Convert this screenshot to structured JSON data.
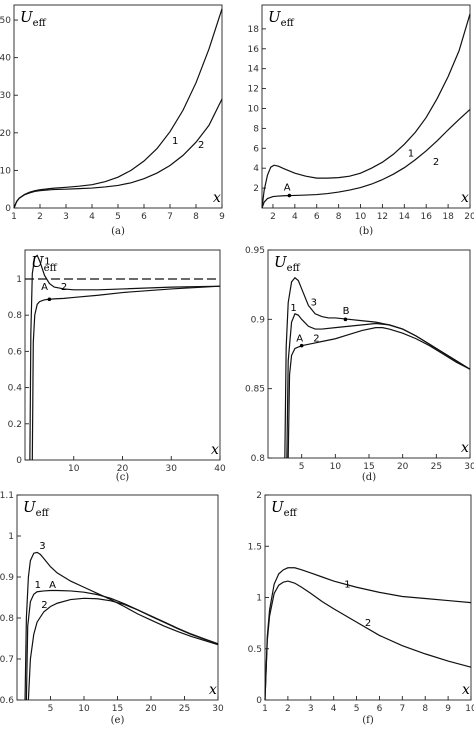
{
  "ylabel_main": "U",
  "ylabel_sub": "eff",
  "xlabel": "x",
  "chart_data": [
    {
      "id": "a",
      "panel_label": "(a)",
      "type": "line",
      "xlim": [
        1,
        9
      ],
      "ylim": [
        0,
        54
      ],
      "xticks": [
        1,
        2,
        3,
        4,
        5,
        6,
        7,
        8,
        9
      ],
      "yticks": [
        0,
        10,
        20,
        30,
        40,
        50
      ],
      "series": [
        {
          "name": "1",
          "x": [
            1,
            1.1,
            1.2,
            1.4,
            1.6,
            1.8,
            2,
            2.5,
            3,
            3.5,
            4,
            4.5,
            5,
            5.5,
            6,
            6.5,
            7,
            7.5,
            8,
            8.5,
            9
          ],
          "y": [
            0,
            1.7,
            2.6,
            3.6,
            4.2,
            4.6,
            4.85,
            5.25,
            5.5,
            5.8,
            6.2,
            7.0,
            8.2,
            10.0,
            12.5,
            15.8,
            20.3,
            26.0,
            33.3,
            42.3,
            53.0
          ]
        },
        {
          "name": "2",
          "x": [
            1,
            1.1,
            1.2,
            1.4,
            1.6,
            1.8,
            2,
            2.5,
            3,
            3.5,
            4,
            4.5,
            5,
            5.5,
            6,
            6.5,
            7,
            7.5,
            8,
            8.5,
            9
          ],
          "y": [
            0,
            1.7,
            2.6,
            3.5,
            4.0,
            4.4,
            4.6,
            4.9,
            5.0,
            5.15,
            5.3,
            5.6,
            6.0,
            6.7,
            7.8,
            9.3,
            11.3,
            14.0,
            17.5,
            22.0,
            29.0
          ]
        }
      ],
      "annotations": [
        {
          "text": "1",
          "x": 7.2,
          "y": 17.0
        },
        {
          "text": "2",
          "x": 8.2,
          "y": 16.0
        }
      ],
      "points": []
    },
    {
      "id": "b",
      "panel_label": "(b)",
      "type": "line",
      "xlim": [
        1,
        20
      ],
      "ylim": [
        0,
        20.4
      ],
      "xticks": [
        2,
        4,
        6,
        8,
        10,
        12,
        14,
        16,
        18,
        20
      ],
      "yticks": [
        2,
        4,
        6,
        8,
        10,
        12,
        14,
        16,
        18
      ],
      "series": [
        {
          "name": "1",
          "x": [
            1,
            1.2,
            1.5,
            1.8,
            2.1,
            2.5,
            3,
            4,
            5,
            6,
            7,
            8,
            9,
            10,
            11,
            12,
            13,
            14,
            15,
            16,
            17,
            18,
            19,
            20
          ],
          "y": [
            0,
            1.8,
            3.3,
            4.1,
            4.3,
            4.2,
            3.95,
            3.5,
            3.2,
            3.0,
            3.0,
            3.05,
            3.2,
            3.5,
            4.0,
            4.6,
            5.4,
            6.4,
            7.6,
            9.1,
            11.0,
            13.2,
            15.8,
            19.5
          ]
        },
        {
          "name": "2",
          "x": [
            1,
            1.2,
            1.5,
            2,
            2.5,
            3,
            3.5,
            4,
            5,
            6,
            7,
            8,
            9,
            10,
            11,
            12,
            13,
            14,
            15,
            16,
            17,
            18,
            19,
            20
          ],
          "y": [
            0,
            0.6,
            0.95,
            1.15,
            1.2,
            1.23,
            1.25,
            1.26,
            1.3,
            1.35,
            1.45,
            1.6,
            1.8,
            2.05,
            2.4,
            2.85,
            3.4,
            4.05,
            4.85,
            5.75,
            6.75,
            7.85,
            8.9,
            9.9
          ]
        }
      ],
      "annotations": [
        {
          "text": "A",
          "x": 3.3,
          "y": 1.75
        },
        {
          "text": "1",
          "x": 14.6,
          "y": 5.2
        },
        {
          "text": "2",
          "x": 16.9,
          "y": 4.3
        }
      ],
      "points": [
        {
          "x": 3.5,
          "y": 1.25
        }
      ]
    },
    {
      "id": "c",
      "panel_label": "(c)",
      "type": "line",
      "xlim": [
        0,
        40
      ],
      "ylim": [
        0,
        1.16
      ],
      "xticks": [
        10,
        20,
        30,
        40
      ],
      "yticks": [
        0,
        0.2,
        0.4,
        0.6,
        0.8,
        1
      ],
      "dashed_y": 1.0,
      "series": [
        {
          "name": "1",
          "x": [
            1,
            1.2,
            1.5,
            2,
            2.5,
            3,
            3.5,
            4,
            5,
            6,
            8,
            10,
            15,
            20,
            30,
            40
          ],
          "y": [
            0,
            0.7,
            1.03,
            1.12,
            1.13,
            1.1,
            1.06,
            1.02,
            0.975,
            0.955,
            0.945,
            0.94,
            0.94,
            0.945,
            0.955,
            0.96
          ]
        },
        {
          "name": "2",
          "x": [
            1.5,
            1.7,
            2,
            2.5,
            3,
            4,
            5,
            6,
            8,
            10,
            15,
            20,
            30,
            40
          ],
          "y": [
            0,
            0.65,
            0.8,
            0.86,
            0.875,
            0.885,
            0.888,
            0.89,
            0.893,
            0.898,
            0.91,
            0.925,
            0.945,
            0.96
          ]
        }
      ],
      "annotations": [
        {
          "text": "1",
          "x": 4.6,
          "y": 1.08
        },
        {
          "text": "A",
          "x": 4.0,
          "y": 0.94
        },
        {
          "text": "2",
          "x": 8.0,
          "y": 0.94
        }
      ],
      "points": [
        {
          "x": 5.0,
          "y": 0.888
        }
      ]
    },
    {
      "id": "d",
      "panel_label": "(d)",
      "type": "line",
      "xlim": [
        0,
        30
      ],
      "ylim": [
        0.8,
        0.95
      ],
      "xticks": [
        5,
        10,
        15,
        20,
        25,
        30
      ],
      "yticks": [
        0.8,
        0.85,
        0.9,
        0.95
      ],
      "series": [
        {
          "name": "3",
          "x": [
            2.5,
            2.7,
            3,
            3.5,
            4,
            4.5,
            5,
            6,
            7,
            8,
            9,
            10,
            12,
            14,
            16,
            18,
            20,
            22,
            24,
            26,
            28,
            30
          ],
          "y": [
            0.8,
            0.88,
            0.912,
            0.927,
            0.93,
            0.928,
            0.922,
            0.91,
            0.904,
            0.902,
            0.901,
            0.901,
            0.9,
            0.899,
            0.898,
            0.896,
            0.893,
            0.888,
            0.882,
            0.876,
            0.87,
            0.864
          ]
        },
        {
          "name": "1",
          "x": [
            2.8,
            3,
            3.5,
            4,
            4.5,
            5,
            6,
            7,
            8,
            10,
            12,
            14,
            16,
            18,
            20,
            22,
            24,
            26,
            28,
            30
          ],
          "y": [
            0.8,
            0.87,
            0.898,
            0.904,
            0.903,
            0.9,
            0.895,
            0.893,
            0.893,
            0.894,
            0.895,
            0.896,
            0.897,
            0.896,
            0.893,
            0.888,
            0.882,
            0.876,
            0.87,
            0.864
          ]
        },
        {
          "name": "2",
          "x": [
            3,
            3.2,
            3.5,
            4,
            5,
            6,
            7,
            8,
            10,
            12,
            14,
            16,
            17,
            18,
            20,
            22,
            24,
            26,
            28,
            30
          ],
          "y": [
            0.8,
            0.86,
            0.874,
            0.879,
            0.881,
            0.882,
            0.883,
            0.884,
            0.886,
            0.889,
            0.892,
            0.894,
            0.894,
            0.893,
            0.89,
            0.886,
            0.881,
            0.875,
            0.869,
            0.864
          ]
        }
      ],
      "annotations": [
        {
          "text": "3",
          "x": 6.8,
          "y": 0.91
        },
        {
          "text": "1",
          "x": 3.8,
          "y": 0.906
        },
        {
          "text": "B",
          "x": 11.6,
          "y": 0.904
        },
        {
          "text": "A",
          "x": 4.7,
          "y": 0.884
        },
        {
          "text": "2",
          "x": 7.2,
          "y": 0.884
        }
      ],
      "points": [
        {
          "x": 11.5,
          "y": 0.9
        },
        {
          "x": 5.0,
          "y": 0.881
        }
      ]
    },
    {
      "id": "e",
      "panel_label": "(e)",
      "type": "line",
      "xlim": [
        0,
        30
      ],
      "ylim": [
        0.6,
        1.1
      ],
      "xticks": [
        5,
        10,
        15,
        20,
        25,
        30
      ],
      "yticks": [
        0.6,
        0.7,
        0.8,
        0.9,
        1,
        1.1
      ],
      "series": [
        {
          "name": "3",
          "x": [
            1.2,
            1.4,
            1.7,
            2,
            2.5,
            3,
            3.5,
            4,
            5,
            6,
            8,
            10,
            12,
            14,
            16,
            18,
            20,
            22,
            24,
            26,
            28,
            30
          ],
          "y": [
            0.6,
            0.8,
            0.9,
            0.94,
            0.958,
            0.96,
            0.955,
            0.945,
            0.925,
            0.91,
            0.89,
            0.875,
            0.86,
            0.845,
            0.828,
            0.81,
            0.795,
            0.78,
            0.767,
            0.755,
            0.745,
            0.735
          ]
        },
        {
          "name": "1",
          "x": [
            1.4,
            1.6,
            2,
            2.5,
            3,
            4,
            5,
            6,
            8,
            10,
            12,
            14,
            16,
            18,
            20,
            22,
            24,
            26,
            28,
            30
          ],
          "y": [
            0.6,
            0.78,
            0.84,
            0.858,
            0.864,
            0.866,
            0.867,
            0.867,
            0.866,
            0.863,
            0.857,
            0.848,
            0.835,
            0.82,
            0.804,
            0.789,
            0.774,
            0.76,
            0.748,
            0.737
          ]
        },
        {
          "name": "2",
          "x": [
            1.7,
            2,
            2.5,
            3,
            4,
            5,
            6,
            8,
            10,
            12,
            14,
            16,
            18,
            20,
            22,
            24,
            26,
            28,
            30
          ],
          "y": [
            0.6,
            0.7,
            0.76,
            0.79,
            0.815,
            0.828,
            0.836,
            0.845,
            0.848,
            0.847,
            0.842,
            0.833,
            0.82,
            0.805,
            0.79,
            0.775,
            0.761,
            0.749,
            0.737
          ]
        }
      ],
      "annotations": [
        {
          "text": "3",
          "x": 3.8,
          "y": 0.968
        },
        {
          "text": "1",
          "x": 3.1,
          "y": 0.873
        },
        {
          "text": "A",
          "x": 5.3,
          "y": 0.873
        },
        {
          "text": "2",
          "x": 4.1,
          "y": 0.825
        }
      ],
      "points": []
    },
    {
      "id": "f",
      "panel_label": "(f)",
      "type": "line",
      "xlim": [
        1,
        10
      ],
      "ylim": [
        0,
        2
      ],
      "xticks": [
        1,
        2,
        3,
        4,
        5,
        6,
        7,
        8,
        9,
        10
      ],
      "yticks": [
        0,
        0.5,
        1,
        1.5,
        2
      ],
      "series": [
        {
          "name": "1",
          "x": [
            1,
            1.1,
            1.2,
            1.4,
            1.6,
            1.8,
            2,
            2.3,
            2.6,
            3,
            3.5,
            4,
            5,
            6,
            7,
            8,
            9,
            10
          ],
          "y": [
            0,
            0.62,
            0.88,
            1.13,
            1.23,
            1.27,
            1.29,
            1.29,
            1.27,
            1.24,
            1.2,
            1.16,
            1.1,
            1.05,
            1.01,
            0.99,
            0.97,
            0.95
          ]
        },
        {
          "name": "2",
          "x": [
            1,
            1.1,
            1.2,
            1.4,
            1.6,
            1.8,
            2,
            2.3,
            2.6,
            3,
            3.5,
            4,
            5,
            6,
            7,
            8,
            9,
            10
          ],
          "y": [
            0,
            0.58,
            0.82,
            1.04,
            1.12,
            1.15,
            1.16,
            1.14,
            1.1,
            1.04,
            0.96,
            0.89,
            0.76,
            0.63,
            0.53,
            0.45,
            0.38,
            0.32
          ]
        }
      ],
      "annotations": [
        {
          "text": "1",
          "x": 4.6,
          "y": 1.1
        },
        {
          "text": "2",
          "x": 5.5,
          "y": 0.72
        }
      ],
      "points": []
    }
  ]
}
